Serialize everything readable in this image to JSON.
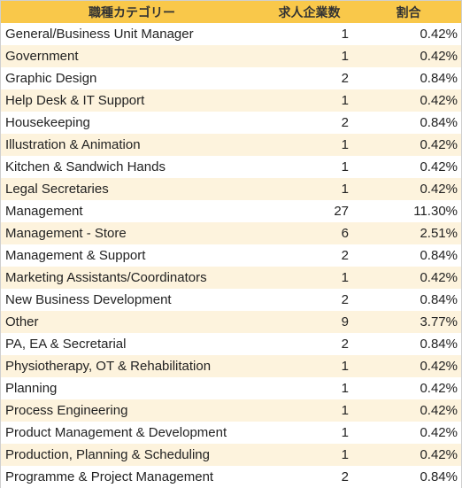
{
  "table": {
    "headers": {
      "category": "職種カテゴリー",
      "count": "求人企業数",
      "ratio": "割合"
    },
    "rows": [
      {
        "category": "General/Business Unit Manager",
        "count": "1",
        "ratio": "0.42%"
      },
      {
        "category": "Government",
        "count": "1",
        "ratio": "0.42%"
      },
      {
        "category": "Graphic Design",
        "count": "2",
        "ratio": "0.84%"
      },
      {
        "category": "Help Desk & IT Support",
        "count": "1",
        "ratio": "0.42%"
      },
      {
        "category": "Housekeeping",
        "count": "2",
        "ratio": "0.84%"
      },
      {
        "category": "Illustration & Animation",
        "count": "1",
        "ratio": "0.42%"
      },
      {
        "category": "Kitchen & Sandwich Hands",
        "count": "1",
        "ratio": "0.42%"
      },
      {
        "category": "Legal Secretaries",
        "count": "1",
        "ratio": "0.42%"
      },
      {
        "category": "Management",
        "count": "27",
        "ratio": "11.30%"
      },
      {
        "category": "Management - Store",
        "count": "6",
        "ratio": "2.51%"
      },
      {
        "category": "Management & Support",
        "count": "2",
        "ratio": "0.84%"
      },
      {
        "category": "Marketing Assistants/Coordinators",
        "count": "1",
        "ratio": "0.42%"
      },
      {
        "category": "New Business Development",
        "count": "2",
        "ratio": "0.84%"
      },
      {
        "category": "Other",
        "count": "9",
        "ratio": "3.77%"
      },
      {
        "category": "PA, EA & Secretarial",
        "count": "2",
        "ratio": "0.84%"
      },
      {
        "category": "Physiotherapy, OT & Rehabilitation",
        "count": "1",
        "ratio": "0.42%"
      },
      {
        "category": "Planning",
        "count": "1",
        "ratio": "0.42%"
      },
      {
        "category": "Process Engineering",
        "count": "1",
        "ratio": "0.42%"
      },
      {
        "category": "Product Management & Development",
        "count": "1",
        "ratio": "0.42%"
      },
      {
        "category": "Production, Planning & Scheduling",
        "count": "1",
        "ratio": "0.42%"
      },
      {
        "category": "Programme & Project Management",
        "count": "2",
        "ratio": "0.84%"
      }
    ]
  },
  "colors": {
    "header_bg": "#f9c84a",
    "stripe_bg": "#fdf3dd",
    "text": "#222222"
  }
}
